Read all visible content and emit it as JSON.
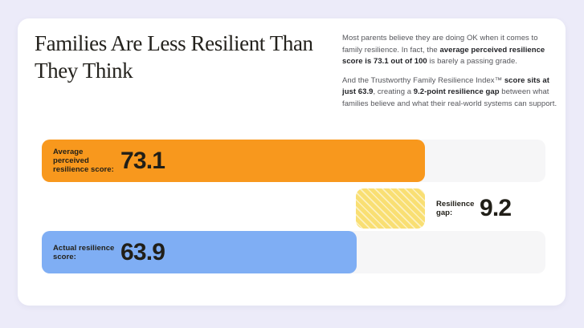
{
  "colors": {
    "background": "#ECEBF9",
    "card": "#FFFFFF",
    "track": "#F6F6F7",
    "orange": "#F8981D",
    "blue": "#7FAEF4",
    "yellow": "#F9DF73",
    "title_ink": "#24221D",
    "body_text": "#55565B"
  },
  "title": "Families Are Less Resilient Than They Think",
  "intro": {
    "paragraphs": [
      {
        "segments": [
          {
            "text": "Most parents believe they are doing OK when it comes to family resilience. In fact, the ",
            "bold": false
          },
          {
            "text": "average perceived resilience score is 73.1 out of 100",
            "bold": true
          },
          {
            "text": " is barely a passing grade.",
            "bold": false
          }
        ]
      },
      {
        "segments": [
          {
            "text": "And the Trustworthy Family Resilience Index™ ",
            "bold": false
          },
          {
            "text": "score sits at just 63.9",
            "bold": true
          },
          {
            "text": ", creating a ",
            "bold": false
          },
          {
            "text": "9.2-point resilience gap",
            "bold": true
          },
          {
            "text": " between what families believe and what their real-world systems can support.",
            "bold": false
          }
        ]
      }
    ]
  },
  "chart_data": {
    "type": "bar",
    "orientation": "horizontal",
    "title": "Families Are Less Resilient Than They Think",
    "xlim": [
      0,
      100
    ],
    "grid": false,
    "legend": false,
    "bars": [
      {
        "label": "Average perceived resilience score:",
        "value": 73.1,
        "display_value": "73.1",
        "color": "#F8981D",
        "pattern": "solid",
        "track": true
      },
      {
        "label": "Resilience gap:",
        "value": 9.2,
        "display_value": "9.2",
        "color": "#F9DF73",
        "pattern": "diagonal-hatch",
        "track": false,
        "starts_at": 63.9
      },
      {
        "label": "Actual resilience score:",
        "value": 63.9,
        "display_value": "63.9",
        "color": "#7FAEF4",
        "pattern": "solid",
        "track": true
      }
    ]
  }
}
